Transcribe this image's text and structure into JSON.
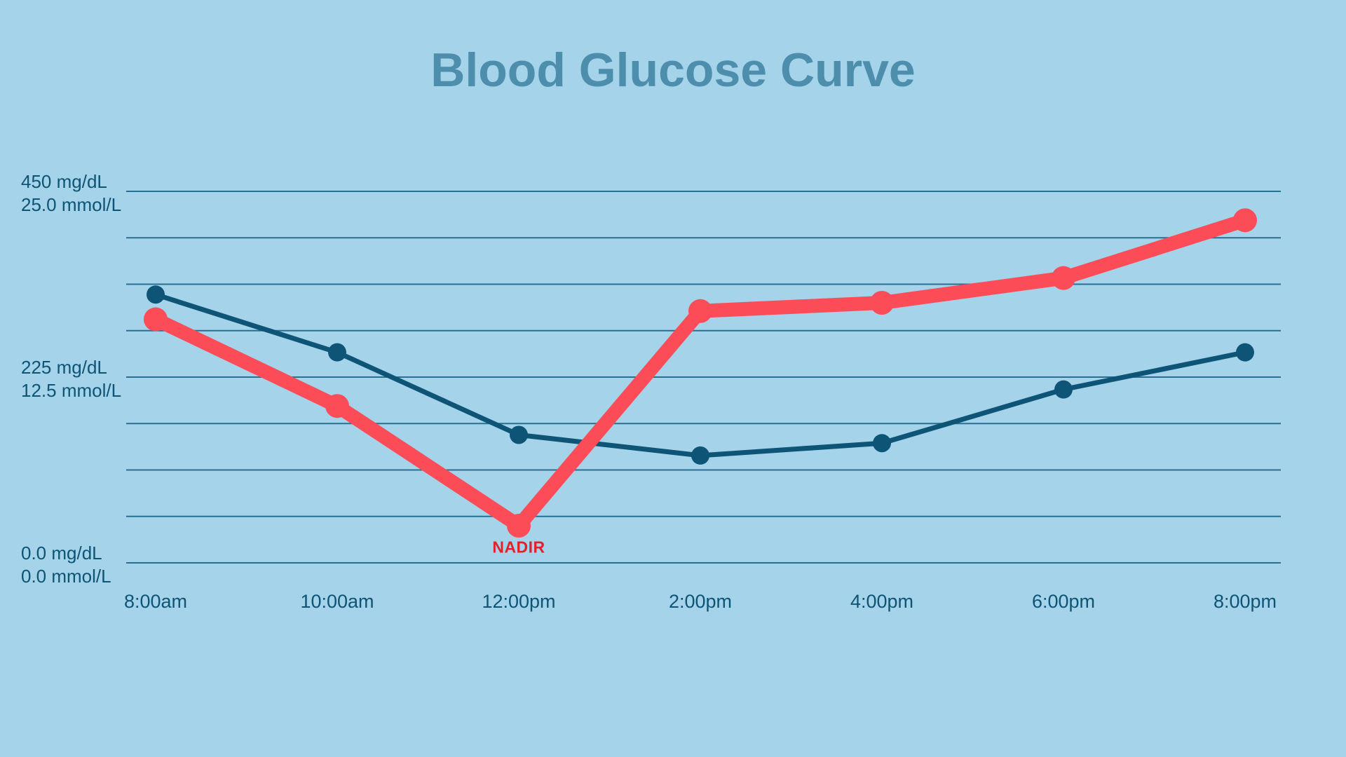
{
  "title": "Blood Glucose Curve",
  "colors": {
    "background": "#A5D3EA",
    "title_text": "#4D8EAD",
    "axis_text": "#0D5475",
    "gridline": "#135E82",
    "series_teal": "#0E5476",
    "series_coral": "#FB4C58",
    "nadir_text": "#E2212B"
  },
  "chart_data": {
    "type": "line",
    "title": "Blood Glucose Curve",
    "xlabel": "",
    "ylabel": "",
    "categories": [
      "8:00am",
      "10:00am",
      "12:00pm",
      "2:00pm",
      "4:00pm",
      "6:00pm",
      "8:00pm"
    ],
    "series": [
      {
        "name": "teal",
        "color": "#0E5476",
        "line_width": 7,
        "marker_radius": 13,
        "values": [
          325,
          255,
          155,
          130,
          145,
          210,
          255
        ]
      },
      {
        "name": "coral",
        "color": "#FB4C58",
        "line_width": 20,
        "marker_radius": 17,
        "values": [
          295,
          190,
          45,
          305,
          315,
          345,
          415
        ]
      }
    ],
    "y_axis": {
      "min": 0,
      "max": 450,
      "gridline_count": 9,
      "labels": [
        {
          "value": 450,
          "mgdl": "450 mg/dL",
          "mmol": "25.0 mmol/L"
        },
        {
          "value": 225,
          "mgdl": "225 mg/dL",
          "mmol": "12.5 mmol/L"
        },
        {
          "value": 0,
          "mgdl": "0.0 mg/dL",
          "mmol": "0.0 mmol/L"
        }
      ]
    },
    "annotations": [
      {
        "text": "NADIR",
        "series": "coral",
        "category_index": 2,
        "color": "#E2212B"
      }
    ],
    "grid": true,
    "legend": false
  }
}
